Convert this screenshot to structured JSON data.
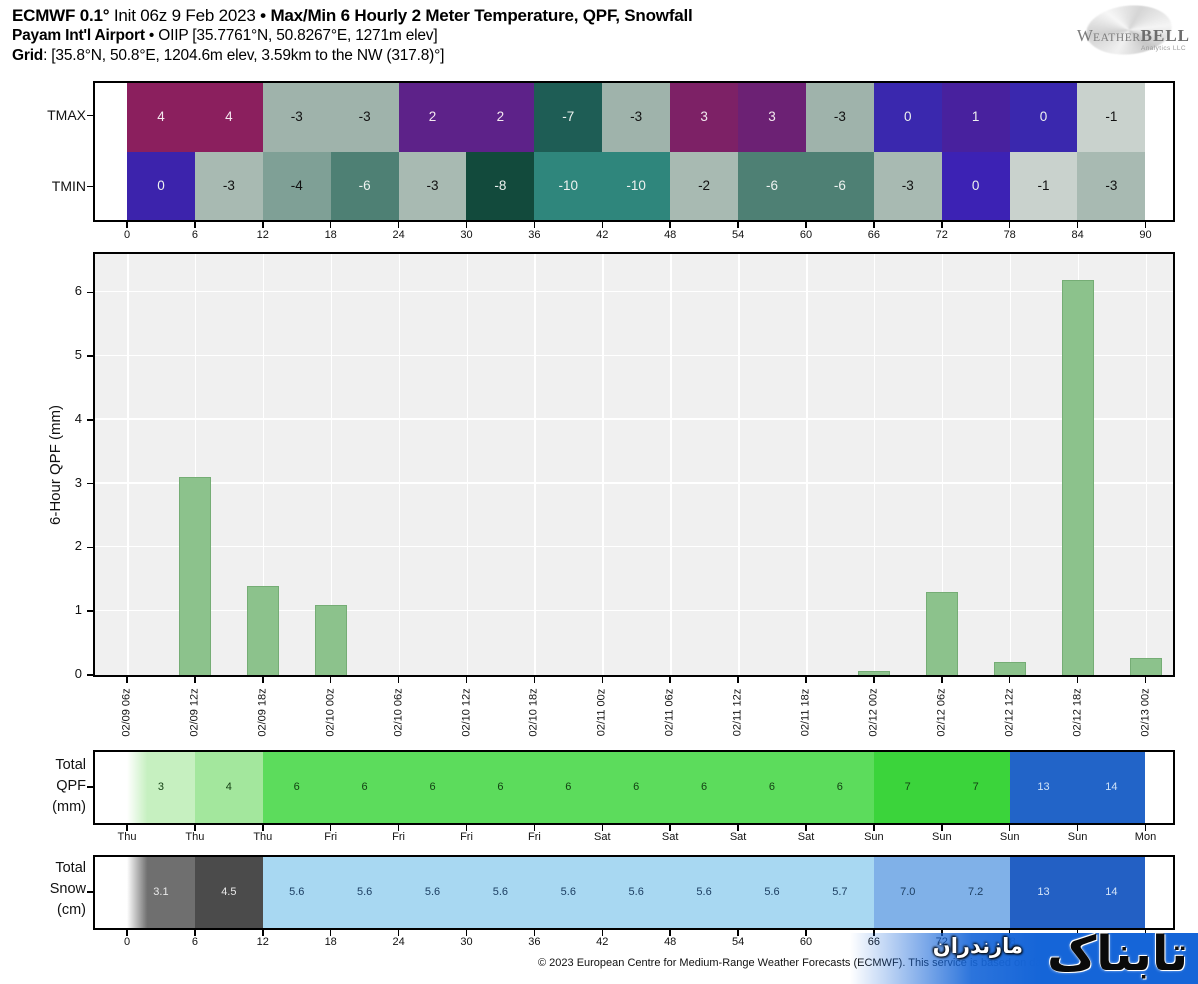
{
  "header": {
    "model_bold": "ECMWF 0.1°",
    "init": " Init 06z 9 Feb 2023 ",
    "title_bold": "• Max/Min 6 Hourly 2 Meter Temperature, QPF, Snowfall",
    "station_bold": "Payam Int'l Airport",
    "station_info": "• OIIP [35.7761°N, 50.8267°E, 1271m elev]",
    "grid_bold": "Grid",
    "grid_info": ": [35.8°N, 50.8°E, 1204.6m elev, 3.59km to the NW (317.8)°]"
  },
  "logo": {
    "w": "W",
    "eather": "EATHER",
    "bell": "BELL",
    "sub": "Analytics LLC"
  },
  "footer": "© 2023 European Centre for Medium-Range Weather Forecasts (ECMWF). This service is based on data and products",
  "watermark": {
    "text_main": "تابناک",
    "text_sub": "مازندران",
    "band_color": "#1565d8"
  },
  "chart_data": [
    {
      "type": "heatmap",
      "x_ticks": [
        "0",
        "6",
        "12",
        "18",
        "24",
        "30",
        "36",
        "42",
        "48",
        "54",
        "60",
        "66",
        "72",
        "78",
        "84",
        "90"
      ],
      "series": [
        {
          "name": "TMAX",
          "values": [
            4,
            4,
            -3,
            -3,
            2,
            2,
            -7,
            -3,
            3,
            3,
            -3,
            0,
            1,
            0,
            -1
          ],
          "colors": [
            "#8b1f5e",
            "#8b1f5e",
            "#9fb3ab",
            "#9fb3ab",
            "#5d2289",
            "#5d2289",
            "#1e5d55",
            "#9fb3ab",
            "#7d2166",
            "#6c2174",
            "#9fb3ab",
            "#3a28ae",
            "#48219e",
            "#3a28ae",
            "#c9d2cd"
          ],
          "text_colors": [
            "#f4e9f0",
            "#f4e9f0",
            "#111111",
            "#111111",
            "#f4e9f0",
            "#f4e9f0",
            "#eef2f0",
            "#111111",
            "#f4e9f0",
            "#f4e9f0",
            "#111111",
            "#eef2f0",
            "#eef2f0",
            "#eef2f0",
            "#111111"
          ]
        },
        {
          "name": "TMIN",
          "values": [
            0,
            -3,
            -4,
            -6,
            -3,
            -8,
            -10,
            -10,
            -2,
            -6,
            -6,
            -3,
            0,
            -1,
            -3
          ],
          "colors": [
            "#3c23ac",
            "#a8bab2",
            "#7fa096",
            "#4e8074",
            "#a8bab2",
            "#124a3c",
            "#2f867c",
            "#2f867c",
            "#a8bab2",
            "#4e8074",
            "#4e8074",
            "#a8bab2",
            "#3c22b4",
            "#c9d2cd",
            "#a8bab2"
          ],
          "text_colors": [
            "#eef2f0",
            "#111111",
            "#111111",
            "#eef2f0",
            "#111111",
            "#eef2f0",
            "#eef2f0",
            "#eef2f0",
            "#111111",
            "#eef2f0",
            "#eef2f0",
            "#111111",
            "#eef2f0",
            "#111111",
            "#111111"
          ]
        }
      ]
    },
    {
      "type": "bar",
      "ylabel": "6-Hour QPF (mm)",
      "ylim": [
        0,
        6.66
      ],
      "y_ticks": [
        0,
        1,
        2,
        3,
        4,
        5,
        6
      ],
      "x": [
        "02/09 06z",
        "02/09 12z",
        "02/09 18z",
        "02/10 00z",
        "02/10 06z",
        "02/10 12z",
        "02/10 18z",
        "02/11 00z",
        "02/11 06z",
        "02/11 12z",
        "02/11 18z",
        "02/12 00z",
        "02/12 06z",
        "02/12 12z",
        "02/12 18z",
        "02/13 00z"
      ],
      "values": [
        0,
        3.1,
        1.4,
        1.1,
        0,
        0,
        0,
        0,
        0,
        0,
        0,
        0.07,
        1.3,
        0.2,
        6.2,
        0.26
      ],
      "bar_color": "#8cc28c",
      "bar_edge": "#75ad75",
      "background": "#f0f0f0",
      "grid_color": "#ffffff"
    },
    {
      "type": "heatmap",
      "label": [
        "Total",
        "QPF",
        "(mm)"
      ],
      "x_ticks": [
        "Thu",
        "Thu",
        "Thu",
        "Fri",
        "Fri",
        "Fri",
        "Fri",
        "Sat",
        "Sat",
        "Sat",
        "Sat",
        "Sun",
        "Sun",
        "Sun",
        "Sun",
        "Mon"
      ],
      "values": [
        "3",
        "4",
        "6",
        "6",
        "6",
        "6",
        "6",
        "6",
        "6",
        "6",
        "6",
        "7",
        "7",
        "13",
        "14"
      ],
      "colors": [
        "#c6f0c0",
        "#a3e79d",
        "#5cdc5c",
        "#5cdc5c",
        "#5cdc5c",
        "#5cdc5c",
        "#5cdc5c",
        "#5cdc5c",
        "#5cdc5c",
        "#5cdc5c",
        "#5cdc5c",
        "#3bd43b",
        "#3bd43b",
        "#2264c8",
        "#2264c8"
      ],
      "text_colors": [
        "#123f12",
        "#123f12",
        "#123f12",
        "#123f12",
        "#123f12",
        "#123f12",
        "#123f12",
        "#123f12",
        "#123f12",
        "#123f12",
        "#123f12",
        "#123f12",
        "#123f12",
        "#cfe2f7",
        "#cfe2f7"
      ]
    },
    {
      "type": "heatmap",
      "label": [
        "Total",
        "Snow",
        "(cm)"
      ],
      "x_ticks": [
        "0",
        "6",
        "12",
        "18",
        "24",
        "30",
        "36",
        "42",
        "48",
        "54",
        "60",
        "66",
        "72",
        "78",
        "84",
        "90"
      ],
      "values": [
        "3.1",
        "4.5",
        "5.6",
        "5.6",
        "5.6",
        "5.6",
        "5.6",
        "5.6",
        "5.6",
        "5.6",
        "5.7",
        "7.0",
        "7.2",
        "13",
        "14"
      ],
      "colors": [
        "#6f6f6f",
        "#4b4b4b",
        "#a8d8f2",
        "#a8d8f2",
        "#a8d8f2",
        "#a8d8f2",
        "#a8d8f2",
        "#a8d8f2",
        "#a8d8f2",
        "#a8d8f2",
        "#a8d8f2",
        "#80b1e8",
        "#80b1e8",
        "#2360c4",
        "#2360c4"
      ],
      "text_colors": [
        "#e9e9e9",
        "#e9e9e9",
        "#1d3f63",
        "#1d3f63",
        "#1d3f63",
        "#1d3f63",
        "#1d3f63",
        "#1d3f63",
        "#1d3f63",
        "#1d3f63",
        "#1d3f63",
        "#1d3f63",
        "#1d3f63",
        "#d4e4f8",
        "#d4e4f8"
      ]
    }
  ]
}
